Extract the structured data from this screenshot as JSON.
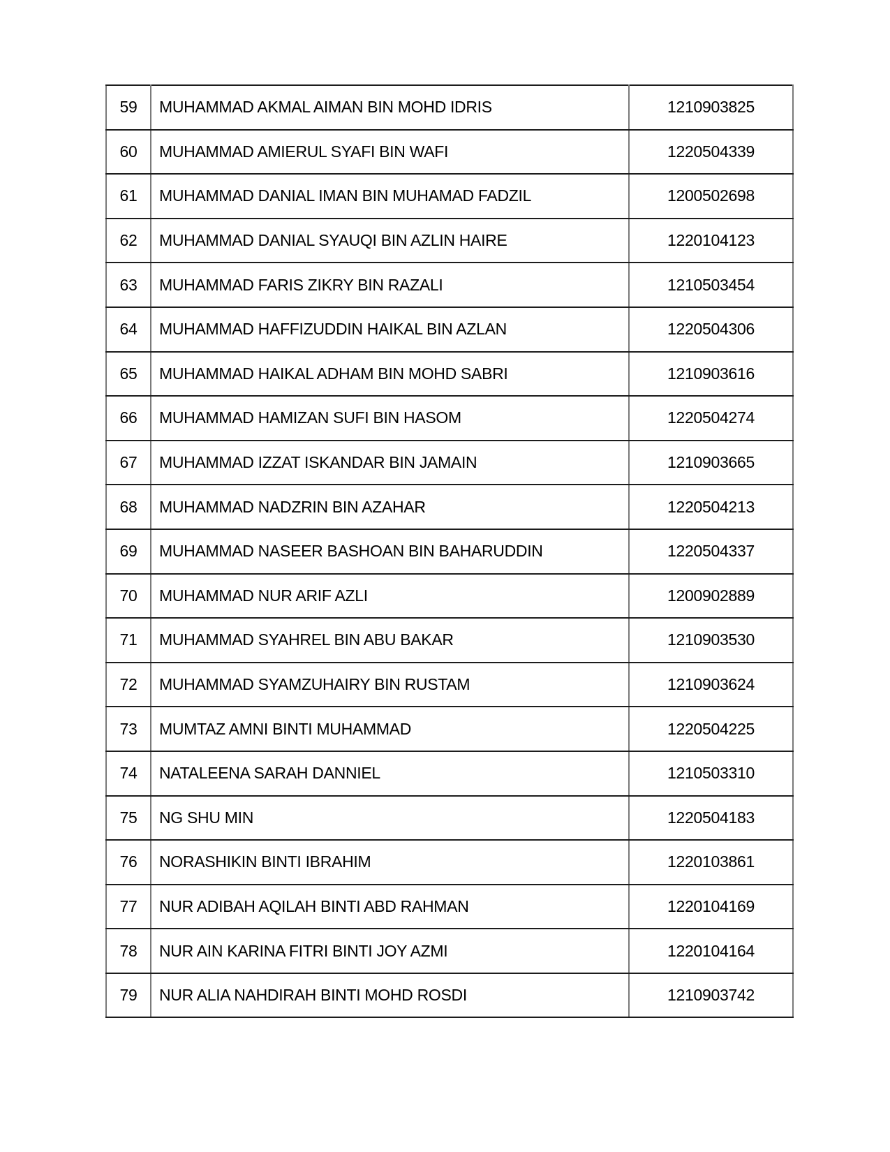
{
  "page": {
    "type": "document-table-page",
    "background": "#ffffff"
  },
  "colors": {
    "row_divider": "#1c1c1c",
    "column_divider": "#7a7a7a",
    "text": "#000000"
  },
  "table": {
    "columns": [
      {
        "key": "no",
        "label": ""
      },
      {
        "key": "name",
        "label": ""
      },
      {
        "key": "id",
        "label": ""
      }
    ],
    "rows": [
      {
        "no": "59",
        "name": "MUHAMMAD AKMAL AIMAN BIN MOHD IDRIS",
        "id": "1210903825"
      },
      {
        "no": "60",
        "name": "MUHAMMAD AMIERUL SYAFI BIN WAFI",
        "id": "1220504339"
      },
      {
        "no": "61",
        "name": "MUHAMMAD DANIAL IMAN BIN MUHAMAD FADZIL",
        "id": "1200502698"
      },
      {
        "no": "62",
        "name": "MUHAMMAD DANIAL SYAUQI BIN AZLIN HAIRE",
        "id": "1220104123"
      },
      {
        "no": "63",
        "name": "MUHAMMAD FARIS ZIKRY BIN RAZALI",
        "id": "1210503454"
      },
      {
        "no": "64",
        "name": "MUHAMMAD HAFFIZUDDIN HAIKAL BIN AZLAN",
        "id": "1220504306"
      },
      {
        "no": "65",
        "name": "MUHAMMAD HAIKAL ADHAM BIN MOHD SABRI",
        "id": "1210903616"
      },
      {
        "no": "66",
        "name": "MUHAMMAD HAMIZAN SUFI BIN HASOM",
        "id": "1220504274"
      },
      {
        "no": "67",
        "name": "MUHAMMAD IZZAT ISKANDAR BIN JAMAIN",
        "id": "1210903665"
      },
      {
        "no": "68",
        "name": "MUHAMMAD NADZRIN BIN AZAHAR",
        "id": "1220504213"
      },
      {
        "no": "69",
        "name": "MUHAMMAD NASEER BASHOAN BIN BAHARUDDIN",
        "id": "1220504337"
      },
      {
        "no": "70",
        "name": "MUHAMMAD NUR ARIF AZLI",
        "id": "1200902889"
      },
      {
        "no": "71",
        "name": "MUHAMMAD SYAHREL BIN ABU BAKAR",
        "id": "1210903530"
      },
      {
        "no": "72",
        "name": "MUHAMMAD SYAMZUHAIRY BIN RUSTAM",
        "id": "1210903624"
      },
      {
        "no": "73",
        "name": "MUMTAZ AMNI BINTI MUHAMMAD",
        "id": "1220504225"
      },
      {
        "no": "74",
        "name": "NATALEENA SARAH DANNIEL",
        "id": "1210503310"
      },
      {
        "no": "75",
        "name": "NG SHU MIN",
        "id": "1220504183"
      },
      {
        "no": "76",
        "name": "NORASHIKIN BINTI IBRAHIM",
        "id": "1220103861"
      },
      {
        "no": "77",
        "name": "NUR ADIBAH AQILAH BINTI ABD RAHMAN",
        "id": "1220104169"
      },
      {
        "no": "78",
        "name": "NUR AIN KARINA FITRI BINTI JOY AZMI",
        "id": "1220104164"
      },
      {
        "no": "79",
        "name": "NUR ALIA NAHDIRAH BINTI MOHD ROSDI",
        "id": "1210903742"
      }
    ]
  }
}
